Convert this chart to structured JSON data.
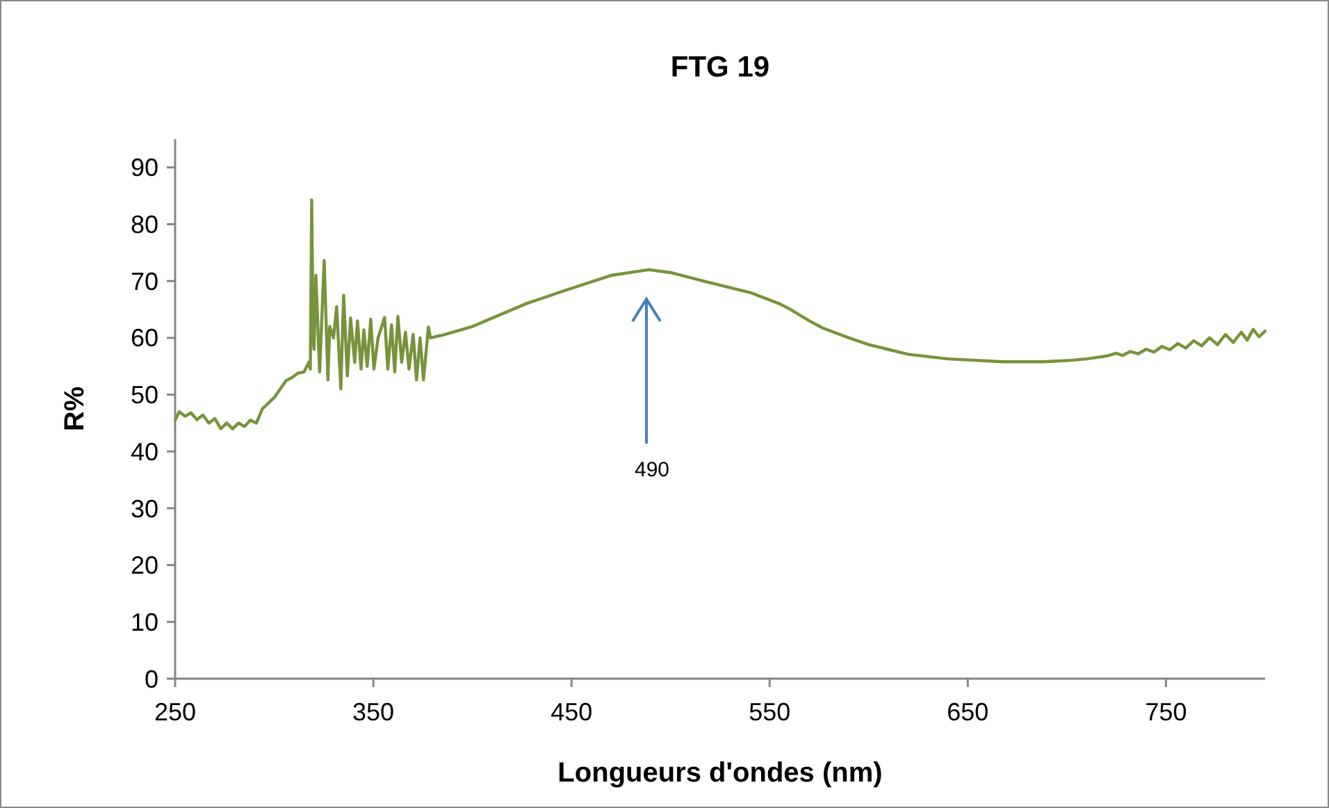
{
  "chart_data": {
    "type": "line",
    "title": "FTG 19",
    "xlabel": "Longueurs d'ondes (nm)",
    "ylabel": "R%",
    "xlim": [
      250,
      800
    ],
    "xticks": [
      250,
      350,
      450,
      550,
      650,
      750
    ],
    "ylim": [
      0,
      95
    ],
    "yticks": [
      0,
      10,
      20,
      30,
      40,
      50,
      60,
      70,
      80,
      90
    ],
    "grid": false,
    "marker": "none",
    "line_style": "solid",
    "annotations": [
      "490"
    ],
    "series": [
      {
        "color": "#77933c",
        "x": [
          250,
          252,
          255,
          258,
          261,
          264,
          267,
          270,
          273,
          276,
          279,
          282,
          285,
          288,
          291,
          294,
          297,
          300,
          303,
          306,
          309,
          312,
          315,
          317.5,
          318.2,
          318.9,
          319.6,
          320.1,
          321,
          322.9,
          325.2,
          327.1,
          328,
          329.9,
          331.5,
          333.6,
          335,
          336.9,
          338.5,
          340.6,
          342,
          343.8,
          345.2,
          346.9,
          348.7,
          350.3,
          352.4,
          355.7,
          357.3,
          359.2,
          360.8,
          362.4,
          364.3,
          366.2,
          368,
          370.1,
          371.8,
          373.6,
          375.3,
          377.8,
          378.8,
          385,
          400,
          427,
          448,
          470,
          489,
          500,
          520,
          540,
          555,
          560,
          570,
          577,
          590,
          600,
          620,
          640,
          668,
          688,
          700,
          710,
          720,
          725,
          728,
          732,
          736,
          740,
          744,
          748,
          752,
          756,
          760,
          764,
          768,
          772,
          776,
          780,
          784,
          788,
          791,
          794,
          797,
          800
        ],
        "values": [
          45.5,
          47,
          46.2,
          46.8,
          45.6,
          46.4,
          45,
          45.8,
          44,
          45,
          44,
          45,
          44.4,
          45.5,
          45,
          47.5,
          48.5,
          49.5,
          51,
          52.5,
          53,
          53.8,
          54,
          55.7,
          54.5,
          84.3,
          60,
          58,
          71,
          54,
          73.6,
          52.6,
          62,
          60,
          65.5,
          51,
          67.5,
          53.3,
          63.5,
          55.7,
          63,
          54.5,
          61.4,
          55,
          63.3,
          54.5,
          60,
          63.6,
          54.5,
          62.3,
          54,
          63.8,
          55.7,
          61,
          54.5,
          60.6,
          52.6,
          60,
          52.6,
          61.9,
          60,
          60.5,
          62,
          66,
          68.5,
          71,
          72,
          71.5,
          69.7,
          68,
          66,
          65.1,
          63,
          61.7,
          60,
          58.8,
          57.1,
          56.3,
          55.8,
          55.8,
          56,
          56.3,
          56.8,
          57.3,
          56.9,
          57.6,
          57.2,
          58,
          57.5,
          58.5,
          57.9,
          59,
          58.2,
          59.5,
          58.6,
          60,
          58.8,
          60.6,
          59.2,
          61,
          59.6,
          61.5,
          60.2,
          61.2
        ]
      }
    ]
  }
}
